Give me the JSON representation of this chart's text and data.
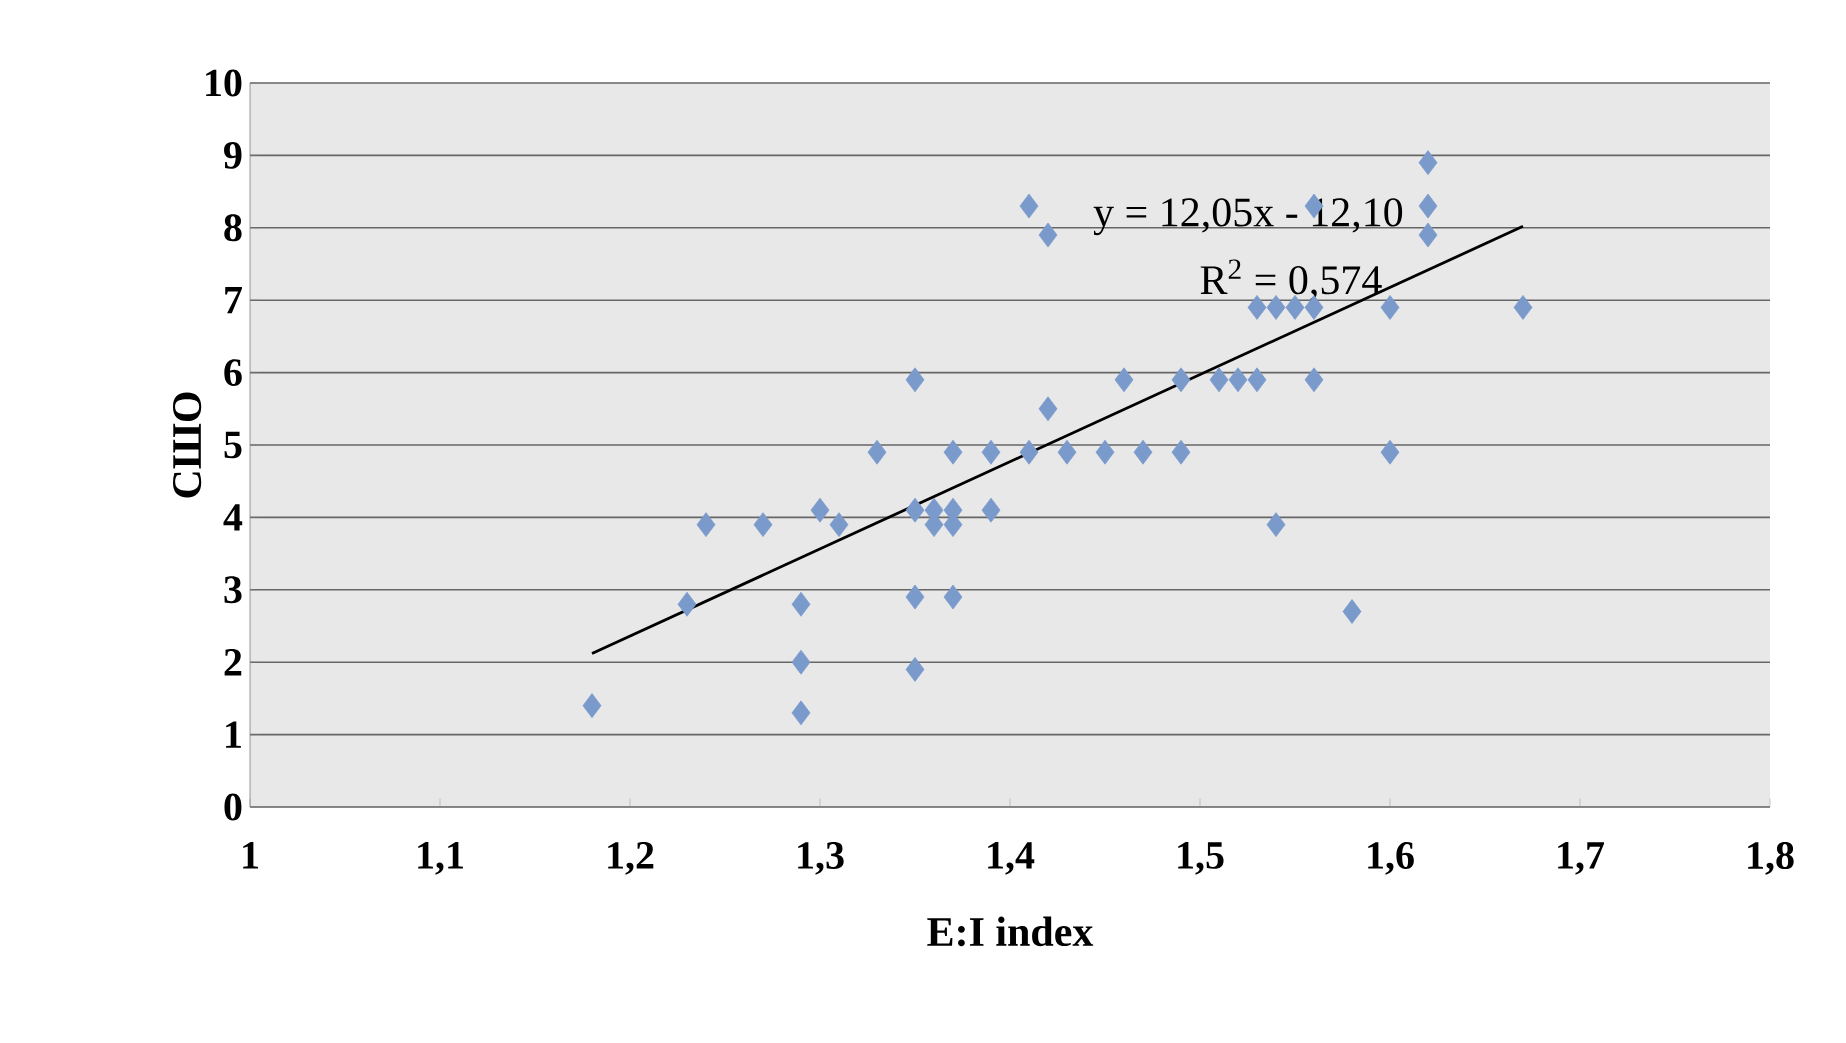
{
  "chart_data": {
    "type": "scatter",
    "xlabel": "E:I index",
    "ylabel": "СШО",
    "annotations": [
      "y = 12,05x - 12,10",
      "R$^{2}$ = 0,574"
    ],
    "series": [
      {
        "color": "#7b9acc",
        "marker": "diamond",
        "x": [
          1.18,
          1.23,
          1.24,
          1.27,
          1.3,
          1.31,
          1.29,
          1.29,
          1.29,
          1.33,
          1.35,
          1.35,
          1.35,
          1.37,
          1.35,
          1.36,
          1.37,
          1.36,
          1.37,
          1.39,
          1.37,
          1.39,
          1.41,
          1.43,
          1.42,
          1.45,
          1.47,
          1.49,
          1.46,
          1.49,
          1.51,
          1.52,
          1.53,
          1.56,
          1.53,
          1.54,
          1.55,
          1.56,
          1.6,
          1.67,
          1.41,
          1.42,
          1.62,
          1.62,
          1.56,
          1.62,
          1.6,
          1.54,
          1.58
        ],
        "values": [
          1.4,
          2.8,
          3.9,
          3.9,
          4.1,
          3.9,
          2.8,
          2.0,
          1.3,
          4.9,
          5.9,
          2.9,
          1.9,
          2.9,
          4.1,
          4.1,
          4.1,
          3.9,
          3.9,
          4.1,
          4.9,
          4.9,
          4.9,
          4.9,
          5.5,
          4.9,
          4.9,
          4.9,
          5.9,
          5.9,
          5.9,
          5.9,
          5.9,
          5.9,
          6.9,
          6.9,
          6.9,
          6.9,
          6.9,
          6.9,
          8.3,
          7.9,
          8.9,
          7.9,
          8.3,
          8.3,
          4.9,
          3.9,
          2.7
        ]
      },
      {
        "type": "line",
        "color": "#000000",
        "marker": "none",
        "x": [
          1.18,
          1.67
        ],
        "values": [
          2.12,
          8.02
        ]
      }
    ],
    "xlim": [
      1,
      1.8
    ],
    "ylim": [
      0,
      10
    ],
    "xticks": [
      1,
      {
        "value": 1.1,
        "label": "1,1"
      },
      {
        "value": 1.2,
        "label": "1,2"
      },
      {
        "value": 1.3,
        "label": "1,3"
      },
      {
        "value": 1.4,
        "label": "1,4"
      },
      {
        "value": 1.5,
        "label": "1,5"
      },
      {
        "value": 1.6,
        "label": "1,6"
      },
      {
        "value": 1.7,
        "label": "1,7"
      },
      {
        "value": 1.8,
        "label": "1,8"
      }
    ],
    "yticks": [
      0,
      1,
      2,
      3,
      4,
      5,
      6,
      7,
      8,
      9,
      10
    ],
    "grid": "y"
  }
}
